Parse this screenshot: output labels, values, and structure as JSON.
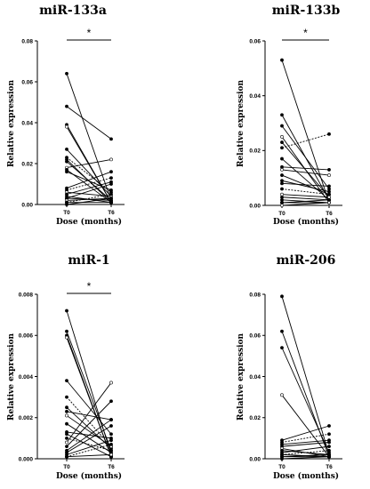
{
  "chart_data": [
    {
      "type": "line",
      "title": "miR-133a",
      "ylabel": "Relative expression",
      "xlabel": "Dose (months)",
      "categories": [
        "T0",
        "T6"
      ],
      "ylim": [
        0,
        0.08
      ],
      "yticks": [
        "0.00",
        "0.02",
        "0.04",
        "0.06",
        "0.08"
      ],
      "significance": "*",
      "paired_values": [
        [
          0.064,
          0.002
        ],
        [
          0.048,
          0.032
        ],
        [
          0.039,
          0.001
        ],
        [
          0.038,
          0.001
        ],
        [
          0.027,
          0.004
        ],
        [
          0.023,
          0.006
        ],
        [
          0.022,
          0.001
        ],
        [
          0.021,
          0.002
        ],
        [
          0.018,
          0.022
        ],
        [
          0.017,
          0.001
        ],
        [
          0.016,
          0.007
        ],
        [
          0.008,
          0.016
        ],
        [
          0.007,
          0.013
        ],
        [
          0.006,
          0.004
        ],
        [
          0.005,
          0.011
        ],
        [
          0.004,
          0.001
        ],
        [
          0.003,
          0.002
        ],
        [
          0.003,
          0.01
        ],
        [
          0.002,
          0.003
        ],
        [
          0.001,
          0.005
        ],
        [
          0.001,
          0.001
        ],
        [
          0.0,
          0.003
        ]
      ]
    },
    {
      "type": "line",
      "title": "miR-133b",
      "ylabel": "Relative expression",
      "xlabel": "Dose (months)",
      "categories": [
        "T0",
        "T6"
      ],
      "ylim": [
        0,
        0.06
      ],
      "yticks": [
        "0.00",
        "0.02",
        "0.04",
        "0.06"
      ],
      "significance": "*",
      "paired_values": [
        [
          0.053,
          0.001
        ],
        [
          0.033,
          0.002
        ],
        [
          0.029,
          0.006
        ],
        [
          0.025,
          0.001
        ],
        [
          0.023,
          0.003
        ],
        [
          0.021,
          0.026
        ],
        [
          0.017,
          0.002
        ],
        [
          0.014,
          0.013
        ],
        [
          0.013,
          0.011
        ],
        [
          0.011,
          0.004
        ],
        [
          0.009,
          0.005
        ],
        [
          0.008,
          0.007
        ],
        [
          0.006,
          0.004
        ],
        [
          0.004,
          0.003
        ],
        [
          0.003,
          0.002
        ],
        [
          0.002,
          0.001
        ],
        [
          0.001,
          0.002
        ],
        [
          0.001,
          0.001
        ],
        [
          0.0,
          0.001
        ]
      ]
    },
    {
      "type": "line",
      "title": "miR-1",
      "ylabel": "Relative expression",
      "xlabel": "Dose (months)",
      "categories": [
        "T0",
        "T6"
      ],
      "ylim": [
        0,
        0.008
      ],
      "yticks": [
        "0.000",
        "0.002",
        "0.004",
        "0.006",
        "0.008"
      ],
      "significance": "*",
      "paired_values": [
        [
          0.0072,
          0.0002
        ],
        [
          0.0062,
          0.0004
        ],
        [
          0.006,
          0.0001
        ],
        [
          0.0059,
          0.0001
        ],
        [
          0.0038,
          0.0012
        ],
        [
          0.003,
          0.0006
        ],
        [
          0.0025,
          0.0005
        ],
        [
          0.0023,
          0.0019
        ],
        [
          0.0021,
          0.0006
        ],
        [
          0.0017,
          0.0003
        ],
        [
          0.0013,
          0.001
        ],
        [
          0.0012,
          0.0001
        ],
        [
          0.001,
          0.0004
        ],
        [
          0.0008,
          0.0037
        ],
        [
          0.0006,
          0.0028
        ],
        [
          0.0004,
          0.0019
        ],
        [
          0.0003,
          0.0016
        ],
        [
          0.0002,
          0.0009
        ],
        [
          0.0001,
          0.0002
        ],
        [
          0.0001,
          0.0007
        ]
      ]
    },
    {
      "type": "line",
      "title": "miR-206",
      "ylabel": "Relative expression",
      "xlabel": "Dose (months)",
      "categories": [
        "T0",
        "T6"
      ],
      "ylim": [
        0,
        0.08
      ],
      "yticks": [
        "0.00",
        "0.02",
        "0.04",
        "0.06",
        "0.08"
      ],
      "significance": "",
      "paired_values": [
        [
          0.079,
          0.002
        ],
        [
          0.062,
          0.001
        ],
        [
          0.054,
          0.003
        ],
        [
          0.031,
          0.001
        ],
        [
          0.009,
          0.016
        ],
        [
          0.008,
          0.012
        ],
        [
          0.007,
          0.009
        ],
        [
          0.006,
          0.008
        ],
        [
          0.005,
          0.001
        ],
        [
          0.004,
          0.002
        ],
        [
          0.003,
          0.006
        ],
        [
          0.002,
          0.001
        ],
        [
          0.002,
          0.004
        ],
        [
          0.001,
          0.001
        ],
        [
          0.001,
          0.002
        ],
        [
          0.0,
          0.001
        ]
      ]
    }
  ]
}
